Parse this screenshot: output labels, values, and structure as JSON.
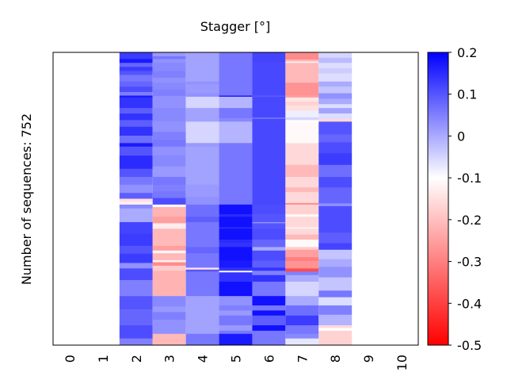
{
  "chart_data": {
    "type": "heatmap",
    "title": "Stagger [°]",
    "xlabel": "",
    "ylabel": "Number of sequences: 752",
    "n_rows": 752,
    "x_tick_labels": [
      "0",
      "1",
      "2",
      "3",
      "4",
      "5",
      "6",
      "7",
      "8",
      "9",
      "10"
    ],
    "colorbar": {
      "range": [
        -0.5,
        0.2
      ],
      "center": -0.1,
      "tick_labels": [
        "0.2",
        "0.1",
        "0",
        "-0.1",
        "-0.2",
        "-0.3",
        "-0.4",
        "-0.5"
      ],
      "colors": {
        "high": "#0000ff",
        "mid": "#ffffff",
        "low": "#ff0000"
      }
    },
    "columns_note": "each column: list of [endRow, value] segments, rows from top",
    "columns": [
      [],
      [],
      [
        [
          17,
          0.13
        ],
        [
          27,
          0.17
        ],
        [
          37,
          0.08
        ],
        [
          48,
          0.13
        ],
        [
          58,
          0.1
        ],
        [
          75,
          0.06
        ],
        [
          88,
          0.08
        ],
        [
          102,
          0.11
        ],
        [
          111,
          0.05
        ],
        [
          116,
          0.17
        ],
        [
          143,
          0.14
        ],
        [
          157,
          0.09
        ],
        [
          174,
          0.14
        ],
        [
          191,
          0.09
        ],
        [
          214,
          0.14
        ],
        [
          233,
          0.07
        ],
        [
          242,
          0.17
        ],
        [
          265,
          0.1
        ],
        [
          299,
          0.15
        ],
        [
          320,
          0.1
        ],
        [
          340,
          0.06
        ],
        [
          361,
          0.03
        ],
        [
          376,
          0.09
        ],
        [
          384,
          -0.15
        ],
        [
          391,
          -0.12
        ],
        [
          401,
          0.04
        ],
        [
          436,
          0.0
        ],
        [
          466,
          0.12
        ],
        [
          497,
          0.13
        ],
        [
          517,
          0.1
        ],
        [
          541,
          0.13
        ],
        [
          555,
          0.03
        ],
        [
          585,
          0.11
        ],
        [
          626,
          0.05
        ],
        [
          660,
          0.1
        ],
        [
          701,
          0.08
        ],
        [
          735,
          0.11
        ],
        [
          752,
          0.05
        ]
      ],
      [
        [
          10,
          0.02
        ],
        [
          17,
          0.06
        ],
        [
          27,
          0.03
        ],
        [
          48,
          0.04
        ],
        [
          65,
          0.05
        ],
        [
          78,
          0.03
        ],
        [
          95,
          0.04
        ],
        [
          112,
          0.05
        ],
        [
          143,
          0.03
        ],
        [
          177,
          0.04
        ],
        [
          204,
          0.03
        ],
        [
          225,
          0.05
        ],
        [
          242,
          0.06
        ],
        [
          265,
          0.03
        ],
        [
          293,
          0.04
        ],
        [
          320,
          0.02
        ],
        [
          340,
          0.06
        ],
        [
          357,
          0.05
        ],
        [
          374,
          0.06
        ],
        [
          391,
          0.11
        ],
        [
          397,
          -0.1
        ],
        [
          422,
          -0.22
        ],
        [
          439,
          -0.25
        ],
        [
          453,
          -0.13
        ],
        [
          497,
          -0.21
        ],
        [
          509,
          -0.25
        ],
        [
          516,
          -0.12
        ],
        [
          534,
          -0.21
        ],
        [
          539,
          -0.12
        ],
        [
          548,
          -0.28
        ],
        [
          561,
          -0.18
        ],
        [
          626,
          -0.22
        ],
        [
          653,
          0.04
        ],
        [
          667,
          0.02
        ],
        [
          687,
          0.05
        ],
        [
          723,
          0.03
        ],
        [
          752,
          -0.21
        ]
      ],
      [
        [
          17,
          0.01
        ],
        [
          75,
          0.01
        ],
        [
          82,
          0.03
        ],
        [
          105,
          0.02
        ],
        [
          114,
          0.03
        ],
        [
          143,
          -0.05
        ],
        [
          178,
          0.01
        ],
        [
          233,
          -0.05
        ],
        [
          242,
          0.02
        ],
        [
          340,
          0.01
        ],
        [
          371,
          0.02
        ],
        [
          391,
          0.03
        ],
        [
          422,
          0.07
        ],
        [
          436,
          0.09
        ],
        [
          500,
          0.06
        ],
        [
          516,
          0.08
        ],
        [
          553,
          0.06
        ],
        [
          558,
          -0.15
        ],
        [
          563,
          0.1
        ],
        [
          626,
          0.06
        ],
        [
          723,
          0.01
        ],
        [
          752,
          0.06
        ]
      ],
      [
        [
          111,
          0.06
        ],
        [
          114,
          0.17
        ],
        [
          143,
          -0.013
        ],
        [
          169,
          0.06
        ],
        [
          178,
          0.04
        ],
        [
          233,
          -0.013
        ],
        [
          391,
          0.06
        ],
        [
          416,
          0.18
        ],
        [
          422,
          0.15
        ],
        [
          449,
          0.18
        ],
        [
          453,
          0.15
        ],
        [
          481,
          0.18
        ],
        [
          489,
          0.15
        ],
        [
          500,
          0.14
        ],
        [
          535,
          0.18
        ],
        [
          553,
          0.17
        ],
        [
          561,
          0.14
        ],
        [
          565,
          -0.1
        ],
        [
          589,
          0.14
        ],
        [
          626,
          0.18
        ],
        [
          650,
          0.03
        ],
        [
          663,
          0.05
        ],
        [
          676,
          0.02
        ],
        [
          701,
          0.06
        ],
        [
          715,
          0.02
        ],
        [
          723,
          0.06
        ],
        [
          752,
          0.17
        ]
      ],
      [
        [
          24,
          0.12
        ],
        [
          111,
          0.115
        ],
        [
          114,
          0.09
        ],
        [
          167,
          0.115
        ],
        [
          171,
          0.07
        ],
        [
          391,
          0.115
        ],
        [
          416,
          0.11
        ],
        [
          436,
          0.1
        ],
        [
          439,
          0.03
        ],
        [
          453,
          0.1
        ],
        [
          481,
          0.11
        ],
        [
          500,
          0.08
        ],
        [
          509,
          0.0
        ],
        [
          535,
          0.11
        ],
        [
          553,
          0.09
        ],
        [
          561,
          0.14
        ],
        [
          572,
          0.05
        ],
        [
          589,
          0.14
        ],
        [
          626,
          0.06
        ],
        [
          650,
          0.18
        ],
        [
          663,
          0.06
        ],
        [
          676,
          0.18
        ],
        [
          701,
          0.09
        ],
        [
          715,
          0.18
        ],
        [
          752,
          0.06
        ]
      ],
      [
        [
          19,
          -0.28
        ],
        [
          24,
          -0.2
        ],
        [
          27,
          -0.12
        ],
        [
          78,
          -0.21
        ],
        [
          111,
          -0.27
        ],
        [
          116,
          -0.25
        ],
        [
          126,
          -0.14
        ],
        [
          136,
          -0.17
        ],
        [
          150,
          -0.15
        ],
        [
          167,
          -0.08
        ],
        [
          174,
          -0.05
        ],
        [
          178,
          -0.1
        ],
        [
          233,
          -0.11
        ],
        [
          289,
          -0.16
        ],
        [
          320,
          -0.21
        ],
        [
          347,
          -0.16
        ],
        [
          359,
          -0.21
        ],
        [
          387,
          -0.16
        ],
        [
          391,
          -0.28
        ],
        [
          416,
          -0.17
        ],
        [
          422,
          -0.11
        ],
        [
          449,
          -0.16
        ],
        [
          453,
          -0.12
        ],
        [
          468,
          -0.16
        ],
        [
          481,
          -0.21
        ],
        [
          500,
          -0.11
        ],
        [
          507,
          -0.18
        ],
        [
          526,
          -0.25
        ],
        [
          536,
          -0.3
        ],
        [
          555,
          -0.27
        ],
        [
          563,
          -0.38
        ],
        [
          572,
          0.05
        ],
        [
          589,
          0.0
        ],
        [
          626,
          -0.05
        ],
        [
          650,
          0.0
        ],
        [
          676,
          0.07
        ],
        [
          701,
          0.13
        ],
        [
          723,
          0.06
        ],
        [
          735,
          0.04
        ],
        [
          752,
          -0.07
        ]
      ],
      [
        [
          14,
          -0.05
        ],
        [
          27,
          -0.02
        ],
        [
          41,
          -0.06
        ],
        [
          54,
          -0.04
        ],
        [
          75,
          -0.06
        ],
        [
          88,
          0.0
        ],
        [
          105,
          -0.03
        ],
        [
          119,
          0.03
        ],
        [
          133,
          0.0
        ],
        [
          143,
          -0.06
        ],
        [
          157,
          0.01
        ],
        [
          171,
          -0.06
        ],
        [
          178,
          -0.16
        ],
        [
          211,
          0.1
        ],
        [
          231,
          0.08
        ],
        [
          259,
          0.11
        ],
        [
          289,
          0.13
        ],
        [
          320,
          0.07
        ],
        [
          347,
          0.11
        ],
        [
          388,
          0.08
        ],
        [
          395,
          0.03
        ],
        [
          463,
          0.11
        ],
        [
          490,
          0.09
        ],
        [
          507,
          0.12
        ],
        [
          531,
          -0.03
        ],
        [
          551,
          0.0
        ],
        [
          578,
          0.03
        ],
        [
          612,
          -0.03
        ],
        [
          629,
          0.06
        ],
        [
          650,
          -0.06
        ],
        [
          674,
          0.05
        ],
        [
          701,
          -0.01
        ],
        [
          708,
          -0.16
        ],
        [
          715,
          -0.1
        ],
        [
          752,
          -0.17
        ]
      ],
      [],
      []
    ]
  }
}
